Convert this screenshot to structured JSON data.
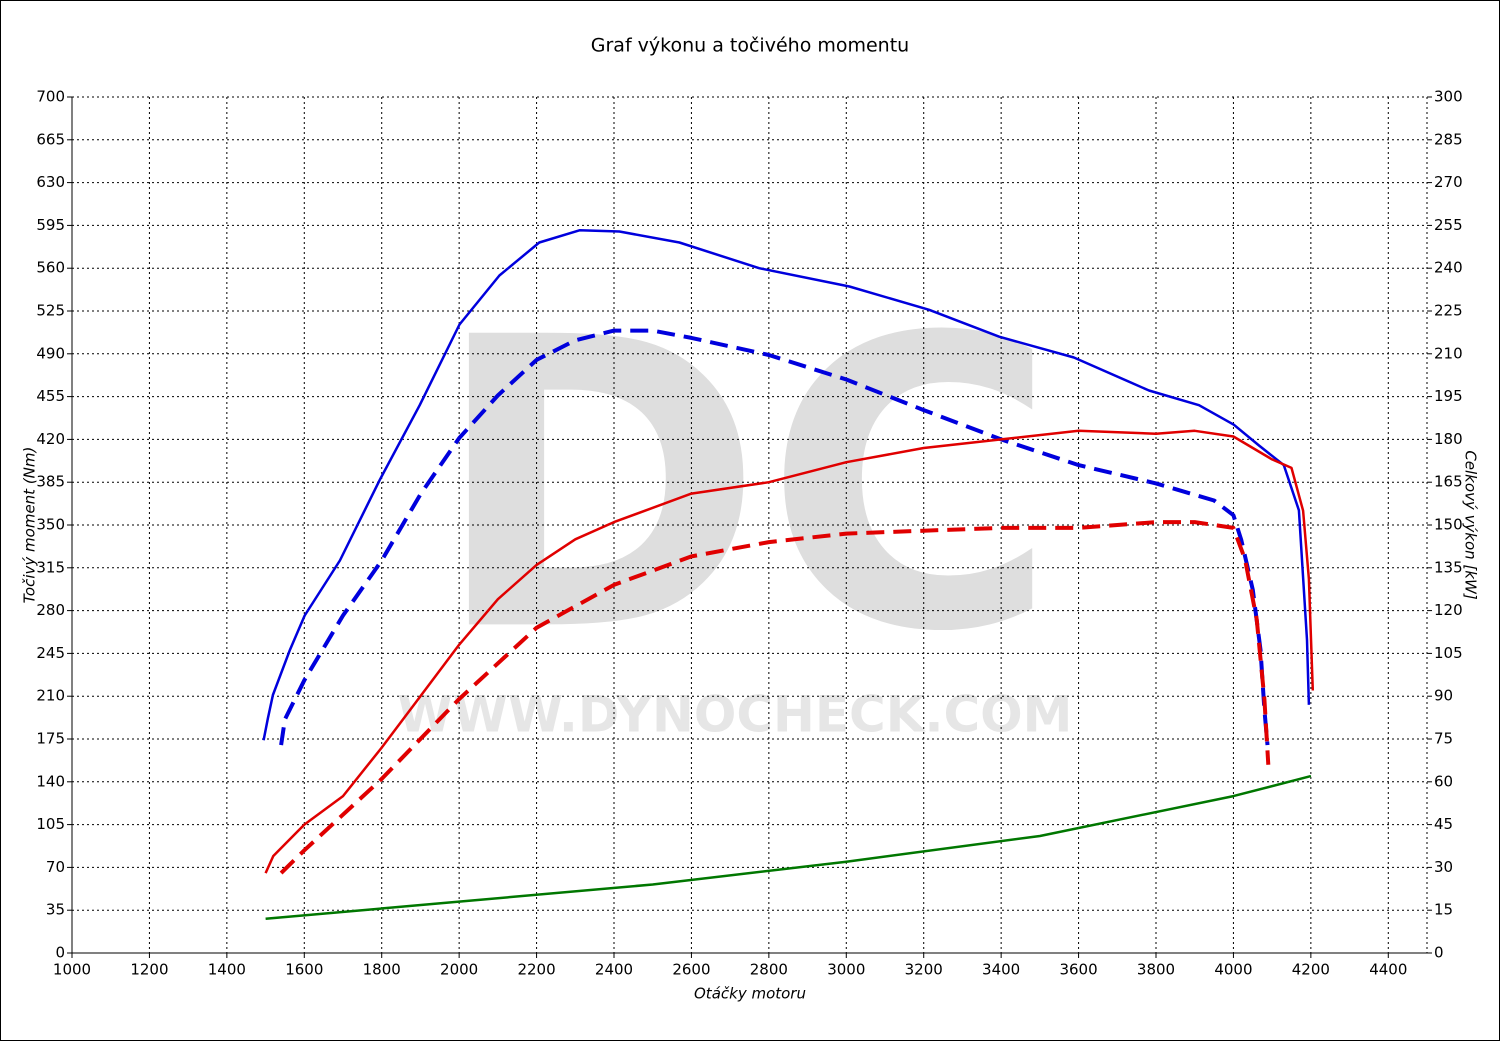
{
  "chart_data": {
    "type": "line",
    "title": "Graf výkonu a točivého momentu",
    "xlabel": "Otáčky motoru",
    "ylabel": "Točivý moment (Nm)",
    "y2label": "Celkový výkon [kW]",
    "watermark": {
      "logo": "DC",
      "url": "WWW.DYNOCHECK.COM"
    },
    "xlim": [
      1000,
      4500
    ],
    "xticks": [
      1000,
      1200,
      1400,
      1600,
      1800,
      2000,
      2200,
      2400,
      2600,
      2800,
      3000,
      3200,
      3400,
      3600,
      3800,
      4000,
      4200,
      4400
    ],
    "ylim": [
      0,
      700
    ],
    "yticks": [
      0,
      35,
      70,
      105,
      140,
      175,
      210,
      245,
      280,
      315,
      350,
      385,
      420,
      455,
      490,
      525,
      560,
      595,
      630,
      665,
      700
    ],
    "y2lim": [
      0,
      300
    ],
    "y2ticks": [
      0,
      15,
      30,
      45,
      60,
      75,
      90,
      105,
      120,
      135,
      150,
      165,
      180,
      195,
      210,
      225,
      240,
      255,
      270,
      285,
      300
    ],
    "grid": true,
    "series": [
      {
        "color": "#0000dd",
        "dashed": false,
        "axis": "y",
        "x": [
          1495,
          1506,
          1519,
          1563,
          1601,
          1692,
          1795,
          1898,
          2001,
          2104,
          2207,
          2311,
          2414,
          2569,
          2775,
          3008,
          3214,
          3395,
          3588,
          3782,
          3911,
          4001,
          4066,
          4130,
          4169,
          4190,
          4195
        ],
        "values": [
          174,
          192,
          211,
          248,
          276,
          321,
          387,
          448,
          514,
          554,
          581,
          591,
          590,
          581,
          560,
          545,
          526,
          504,
          487,
          460,
          448,
          432,
          415,
          399,
          362,
          256,
          203
        ]
      },
      {
        "color": "#0000dd",
        "dashed": true,
        "axis": "y",
        "x": [
          1540,
          1550,
          1600,
          1700,
          1800,
          1900,
          2000,
          2100,
          2200,
          2300,
          2400,
          2500,
          2600,
          2800,
          3000,
          3200,
          3400,
          3600,
          3800,
          3950,
          4000,
          4020,
          4050,
          4070,
          4080,
          4088
        ],
        "values": [
          170,
          191,
          223,
          276,
          321,
          375,
          421,
          456,
          485,
          501,
          509,
          509,
          503,
          489,
          469,
          444,
          420,
          399,
          384,
          370,
          358,
          338,
          297,
          248,
          199,
          170
        ]
      },
      {
        "color": "#e00000",
        "dashed": false,
        "axis": "y2",
        "x": [
          1500,
          1520,
          1600,
          1700,
          1800,
          1900,
          2000,
          2100,
          2200,
          2300,
          2400,
          2600,
          2800,
          3000,
          3200,
          3400,
          3600,
          3800,
          3900,
          4000,
          4100,
          4150,
          4180,
          4195,
          4205
        ],
        "values": [
          28,
          34,
          45,
          55,
          72,
          90,
          108,
          124,
          136,
          145,
          151,
          161,
          165,
          172,
          177,
          180,
          183,
          182,
          183,
          181,
          173,
          170,
          155,
          131,
          92
        ]
      },
      {
        "color": "#e00000",
        "dashed": true,
        "axis": "y2",
        "x": [
          1540,
          1600,
          1800,
          2000,
          2200,
          2400,
          2600,
          2800,
          3000,
          3200,
          3400,
          3600,
          3800,
          3900,
          4000,
          4030,
          4060,
          4080,
          4090
        ],
        "values": [
          28,
          36,
          61,
          89,
          114,
          129,
          139,
          144,
          147,
          148,
          149,
          149,
          151,
          151,
          149,
          138,
          117,
          89,
          66
        ]
      },
      {
        "color": "#007700",
        "dashed": false,
        "axis": "y2",
        "x": [
          1500,
          2000,
          2500,
          3000,
          3500,
          4000,
          4200
        ],
        "values": [
          12,
          18,
          24,
          32,
          41,
          55,
          62
        ]
      }
    ]
  }
}
